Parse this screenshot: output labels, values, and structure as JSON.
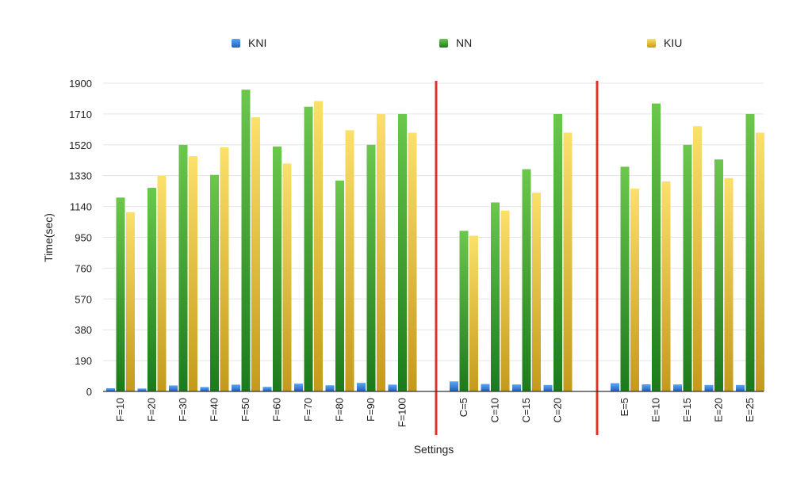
{
  "chart_data": {
    "type": "bar",
    "xlabel": "Settings",
    "ylabel": "Time(sec)",
    "ylim": [
      0,
      1900
    ],
    "yticks": [
      0,
      190,
      380,
      570,
      760,
      950,
      1140,
      1330,
      1520,
      1710,
      1900
    ],
    "grid": true,
    "legend_position": "top",
    "categories": [
      "F=10",
      "F=20",
      "F=30",
      "F=40",
      "F=50",
      "F=60",
      "F=70",
      "F=80",
      "F=90",
      "F=100",
      "C=5",
      "C=10",
      "C=15",
      "C=20",
      "E=5",
      "E=10",
      "E=15",
      "E=20",
      "E=25"
    ],
    "groups": [
      {
        "categories": [
          "F=10",
          "F=20",
          "F=30",
          "F=40",
          "F=50",
          "F=60",
          "F=70",
          "F=80",
          "F=90",
          "F=100"
        ]
      },
      {
        "categories": [
          "C=5",
          "C=10",
          "C=15",
          "C=20"
        ]
      },
      {
        "categories": [
          "E=5",
          "E=10",
          "E=15",
          "E=20",
          "E=25"
        ]
      }
    ],
    "series": [
      {
        "name": "KNI",
        "color": "#2f7fe0",
        "values": [
          20,
          18,
          37,
          27,
          42,
          28,
          48,
          38,
          53,
          42,
          62,
          46,
          43,
          40,
          51,
          44,
          43,
          40,
          40
        ]
      },
      {
        "name": "NN",
        "color": "#3e9e2e",
        "values": [
          1195,
          1255,
          1520,
          1335,
          1860,
          1510,
          1755,
          1300,
          1520,
          1710,
          990,
          1165,
          1370,
          1710,
          1385,
          1775,
          1520,
          1430,
          1710
        ]
      },
      {
        "name": "KIU",
        "color": "#e8c22a",
        "values": [
          1105,
          1330,
          1450,
          1505,
          1690,
          1405,
          1790,
          1610,
          1710,
          1595,
          960,
          1115,
          1225,
          1595,
          1250,
          1295,
          1635,
          1315,
          1595
        ]
      }
    ],
    "separator_color": "#e0302a"
  }
}
